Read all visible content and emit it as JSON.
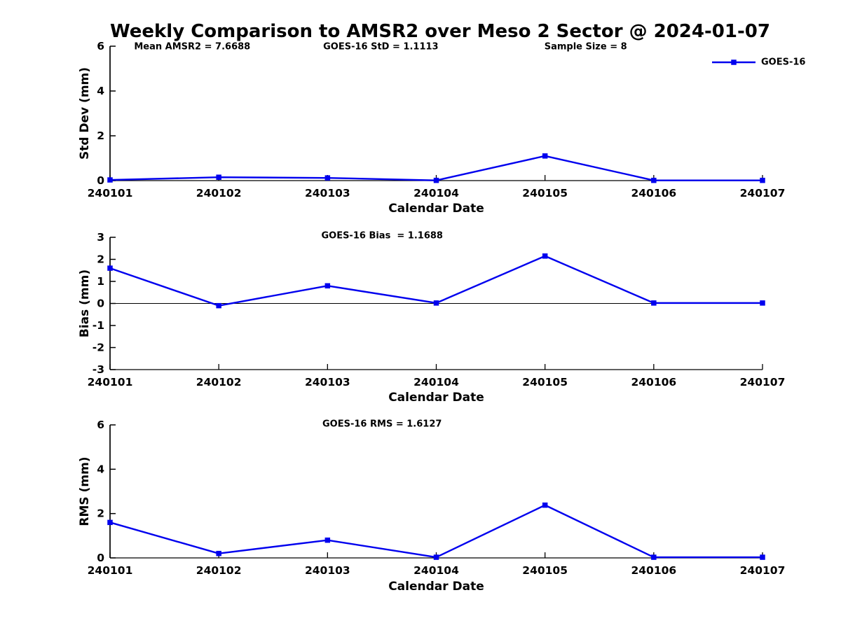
{
  "figure": {
    "title": "Weekly Comparison to AMSR2 over Meso 2 Sector @ 2024-01-07",
    "legend": {
      "label": "GOES-16"
    },
    "series_color": "#0000ee",
    "axis_color": "#000000"
  },
  "chart_data": [
    {
      "type": "line",
      "panel": "std-dev",
      "annotations": [
        "Mean AMSR2 = 7.6688",
        "GOES-16 StD = 1.1113",
        "Sample Size = 8"
      ],
      "xlabel": "Calendar Date",
      "ylabel": "Std Dev (mm)",
      "x": [
        "240101",
        "240102",
        "240103",
        "240104",
        "240105",
        "240106",
        "240107"
      ],
      "series": [
        {
          "name": "GOES-16",
          "values": [
            0.03,
            0.15,
            0.12,
            0.01,
            1.1,
            0.01,
            0.01
          ]
        }
      ],
      "ylim": [
        0,
        6
      ],
      "yticks": [
        0,
        2,
        4,
        6
      ],
      "grid": false,
      "legend_position": "upper-right"
    },
    {
      "type": "line",
      "panel": "bias",
      "annotations": [
        "GOES-16 Bias  = 1.1688"
      ],
      "xlabel": "Calendar Date",
      "ylabel": "Bias (mm)",
      "x": [
        "240101",
        "240102",
        "240103",
        "240104",
        "240105",
        "240106",
        "240107"
      ],
      "series": [
        {
          "name": "GOES-16",
          "values": [
            1.6,
            -0.1,
            0.8,
            0.02,
            2.15,
            0.02,
            0.02
          ]
        }
      ],
      "ylim": [
        -3,
        3
      ],
      "yticks": [
        3,
        2,
        1,
        0,
        -1,
        -2,
        -3
      ],
      "zero_line": true,
      "grid": false
    },
    {
      "type": "line",
      "panel": "rms",
      "annotations": [
        "GOES-16 RMS = 1.6127"
      ],
      "xlabel": "Calendar Date",
      "ylabel": "RMS (mm)",
      "x": [
        "240101",
        "240102",
        "240103",
        "240104",
        "240105",
        "240106",
        "240107"
      ],
      "series": [
        {
          "name": "GOES-16",
          "values": [
            1.6,
            0.2,
            0.8,
            0.03,
            2.38,
            0.03,
            0.03
          ]
        }
      ],
      "ylim": [
        0,
        6
      ],
      "yticks": [
        0,
        2,
        4,
        6
      ],
      "grid": false
    }
  ]
}
